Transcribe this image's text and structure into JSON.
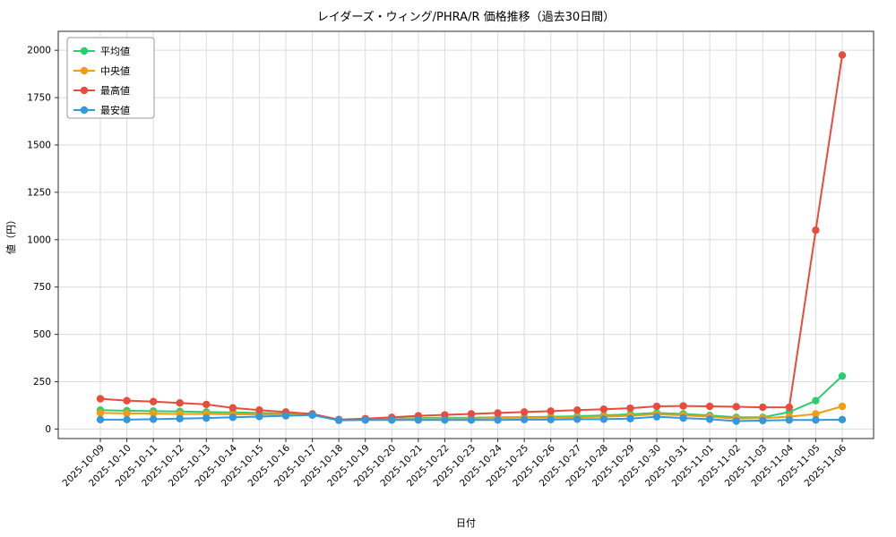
{
  "figure": {
    "background": "#ffffff"
  },
  "chart_data": {
    "type": "line",
    "title": "レイダーズ・ウィング/PHRA/R 価格推移（過去30日間）",
    "xlabel": "日付",
    "ylabel": "値（円）",
    "grid": true,
    "legend_position": "upper left",
    "ylim": [
      -50,
      2100
    ],
    "yticks": [
      0,
      250,
      500,
      750,
      1000,
      1250,
      1500,
      1750,
      2000
    ],
    "x": [
      "2025-10-09",
      "2025-10-10",
      "2025-10-11",
      "2025-10-12",
      "2025-10-13",
      "2025-10-14",
      "2025-10-15",
      "2025-10-16",
      "2025-10-17",
      "2025-10-18",
      "2025-10-19",
      "2025-10-20",
      "2025-10-21",
      "2025-10-22",
      "2025-10-23",
      "2025-10-24",
      "2025-10-25",
      "2025-10-26",
      "2025-10-27",
      "2025-10-28",
      "2025-10-29",
      "2025-10-30",
      "2025-10-31",
      "2025-11-01",
      "2025-11-02",
      "2025-11-03",
      "2025-11-04",
      "2025-11-05",
      "2025-11-06"
    ],
    "series": [
      {
        "id": "average",
        "name": "平均値",
        "color": "#2ecc71",
        "values": [
          100,
          97,
          95,
          93,
          90,
          88,
          85,
          82,
          78,
          50,
          53,
          55,
          58,
          60,
          60,
          62,
          63,
          65,
          68,
          72,
          78,
          85,
          80,
          72,
          62,
          62,
          90,
          150,
          280
        ]
      },
      {
        "id": "median",
        "name": "中央値",
        "color": "#f39c12",
        "values": [
          85,
          83,
          82,
          80,
          80,
          78,
          77,
          76,
          75,
          48,
          52,
          54,
          55,
          55,
          56,
          58,
          60,
          60,
          62,
          65,
          70,
          78,
          72,
          65,
          55,
          58,
          65,
          80,
          120
        ]
      },
      {
        "id": "max",
        "name": "最高値",
        "color": "#e74c3c",
        "values": [
          160,
          150,
          145,
          138,
          130,
          112,
          100,
          90,
          80,
          50,
          55,
          62,
          70,
          75,
          80,
          85,
          90,
          95,
          100,
          105,
          110,
          120,
          122,
          120,
          118,
          115,
          115,
          1050,
          1975
        ]
      },
      {
        "id": "min",
        "name": "最安値",
        "color": "#3498db",
        "values": [
          50,
          50,
          52,
          55,
          58,
          62,
          66,
          70,
          74,
          46,
          48,
          48,
          48,
          48,
          48,
          48,
          50,
          50,
          52,
          52,
          55,
          65,
          58,
          52,
          42,
          45,
          48,
          48,
          50
        ]
      }
    ]
  }
}
